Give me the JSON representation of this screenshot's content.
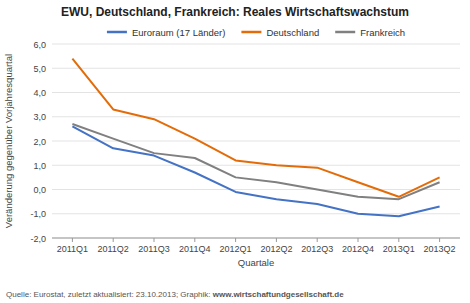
{
  "chart_data": {
    "type": "line",
    "title": "EWU, Deutschland, Frankreich: Reales Wirtschaftswachstum",
    "x_label": "Quartale",
    "y_label": "Veränderung gegenüber Vorjahresquartal",
    "source": [
      "Quelle: Eurostat, zuletzt aktualisiert: 23.10.2013; Graphik: ",
      "www.wirtschaftundgesellschaft.de"
    ],
    "categories": [
      "2011Q1",
      "2011Q2",
      "2011Q3",
      "2011Q4",
      "2012Q1",
      "2012Q2",
      "2012Q3",
      "2012Q4",
      "2013Q1",
      "2013Q2"
    ],
    "series": [
      {
        "name": "Euroraum (17 Länder)",
        "color": "#4472C4",
        "values": [
          2.6,
          1.7,
          1.4,
          0.7,
          -0.1,
          -0.4,
          -0.6,
          -1.0,
          -1.1,
          -0.7
        ]
      },
      {
        "name": "Deutschland",
        "color": "#E36C09",
        "values": [
          5.4,
          3.3,
          2.9,
          2.1,
          1.2,
          1.0,
          0.9,
          0.3,
          -0.3,
          0.5
        ]
      },
      {
        "name": "Frankreich",
        "color": "#808080",
        "values": [
          2.7,
          2.1,
          1.5,
          1.3,
          0.5,
          0.3,
          0.0,
          -0.3,
          -0.4,
          0.3
        ]
      }
    ],
    "ylim": [
      -2.0,
      6.0
    ],
    "yticks": [
      {
        "value": -2.0,
        "label": "-2,0"
      },
      {
        "value": -1.0,
        "label": "-1,0"
      },
      {
        "value": 0.0,
        "label": "0,0"
      },
      {
        "value": 1.0,
        "label": "1,0"
      },
      {
        "value": 2.0,
        "label": "2,0"
      },
      {
        "value": 3.0,
        "label": "3,0"
      },
      {
        "value": 4.0,
        "label": "4,0"
      },
      {
        "value": 5.0,
        "label": "5,0"
      },
      {
        "value": 6.0,
        "label": "6,0"
      }
    ],
    "grid": true,
    "legend": "top"
  }
}
